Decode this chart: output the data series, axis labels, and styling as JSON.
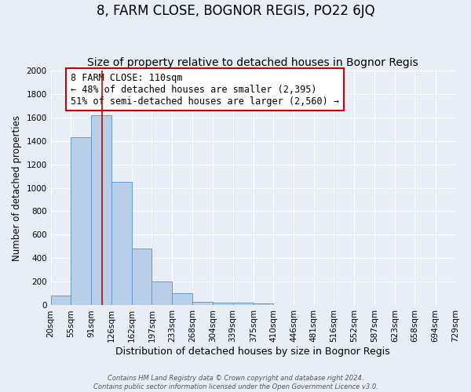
{
  "title": "8, FARM CLOSE, BOGNOR REGIS, PO22 6JQ",
  "subtitle": "Size of property relative to detached houses in Bognor Regis",
  "xlabel": "Distribution of detached houses by size in Bognor Regis",
  "ylabel": "Number of detached properties",
  "bin_edges": [
    20,
    55,
    91,
    126,
    162,
    197,
    233,
    268,
    304,
    339,
    375,
    410,
    446,
    481,
    516,
    552,
    587,
    623,
    658,
    694,
    729
  ],
  "bar_heights": [
    80,
    1430,
    1620,
    1050,
    480,
    205,
    100,
    30,
    25,
    20,
    15,
    0,
    0,
    0,
    0,
    0,
    0,
    0,
    0,
    0
  ],
  "bar_color": "#b8cfe8",
  "bar_edge_color": "#6699cc",
  "bar_edge_width": 0.7,
  "bg_color": "#e8eef5",
  "grid_color": "#ffffff",
  "ylim": [
    0,
    2000
  ],
  "yticks": [
    0,
    200,
    400,
    600,
    800,
    1000,
    1200,
    1400,
    1600,
    1800,
    2000
  ],
  "red_line_x": 110,
  "red_line_color": "#cc0000",
  "annotation_text": "8 FARM CLOSE: 110sqm\n← 48% of detached houses are smaller (2,395)\n51% of semi-detached houses are larger (2,560) →",
  "annotation_box_color": "#ffffff",
  "annotation_box_edge_color": "#cc0000",
  "footnote": "Contains HM Land Registry data © Crown copyright and database right 2024.\nContains public sector information licensed under the Open Government Licence v3.0.",
  "title_fontsize": 12,
  "subtitle_fontsize": 10,
  "xlabel_fontsize": 9,
  "ylabel_fontsize": 8.5,
  "tick_fontsize": 7.5,
  "annot_fontsize": 8.5
}
